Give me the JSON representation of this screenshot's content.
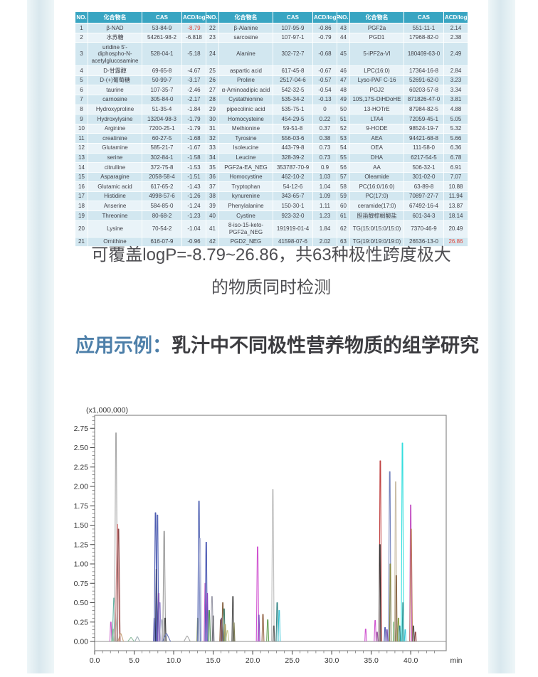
{
  "page": {
    "coverage_line1": "可覆盖logP=-8.79~26.86，共63种极性跨度极大",
    "coverage_line2": "的物质同时检测",
    "heading_label": "应用示例：",
    "heading_text": "乳汁中不同极性营养物质的组学研究"
  },
  "colors": {
    "table_header_bg": "#38a5c2",
    "row_odd": "#d2e7f0",
    "row_even": "#e9f3f8",
    "highlight_red": "#e0483e",
    "heading_blue": "#4d7fa9"
  },
  "table": {
    "header": [
      "NO.",
      "化合物名",
      "CAS",
      "ACD/logP"
    ],
    "groups": [
      [
        {
          "no": "1",
          "name": "β-NAD",
          "cas": "53-84-9",
          "lp": "-8.79",
          "r": 1
        },
        {
          "no": "2",
          "name": "水苏糖",
          "cas": "54261-98-2",
          "lp": "-6.818"
        },
        {
          "no": "3",
          "name": "uridine 5'-diphospho-N-acetylglucosamine",
          "cas": "528-04-1",
          "lp": "-5.18"
        },
        {
          "no": "4",
          "name": "D-甘露醇",
          "cas": "69-65-8",
          "lp": "-4.67"
        },
        {
          "no": "5",
          "name": "D-(+)葡萄糖",
          "cas": "50-99-7",
          "lp": "-3.17"
        },
        {
          "no": "6",
          "name": "taurine",
          "cas": "107-35-7",
          "lp": "-2.46"
        },
        {
          "no": "7",
          "name": "carnosine",
          "cas": "305-84-0",
          "lp": "-2.17"
        },
        {
          "no": "8",
          "name": "Hydroxyproline",
          "cas": "51-35-4",
          "lp": "-1.84"
        },
        {
          "no": "9",
          "name": "Hydroxylysine",
          "cas": "13204-98-3",
          "lp": "-1.79"
        },
        {
          "no": "10",
          "name": "Arginine",
          "cas": "7200-25-1",
          "lp": "-1.79"
        },
        {
          "no": "11",
          "name": "creatinine",
          "cas": "60-27-5",
          "lp": "-1.68"
        },
        {
          "no": "12",
          "name": "Glutamine",
          "cas": "585-21-7",
          "lp": "-1.67"
        },
        {
          "no": "13",
          "name": "serine",
          "cas": "302-84-1",
          "lp": "-1.58"
        },
        {
          "no": "14",
          "name": "citrulline",
          "cas": "372-75-8",
          "lp": "-1.53"
        },
        {
          "no": "15",
          "name": "Asparagine",
          "cas": "2058-58-4",
          "lp": "-1.51"
        },
        {
          "no": "16",
          "name": "Glutamic acid",
          "cas": "617-65-2",
          "lp": "-1.43"
        },
        {
          "no": "17",
          "name": "Histidine",
          "cas": "4998-57-6",
          "lp": "-1.26"
        },
        {
          "no": "18",
          "name": "Anserine",
          "cas": "584-85-0",
          "lp": "-1.24"
        },
        {
          "no": "19",
          "name": "Threonine",
          "cas": "80-68-2",
          "lp": "-1.23"
        },
        {
          "no": "20",
          "name": "Lysine",
          "cas": "70-54-2",
          "lp": "-1.04"
        },
        {
          "no": "21",
          "name": "Ornithine",
          "cas": "616-07-9",
          "lp": "-0.96"
        }
      ],
      [
        {
          "no": "22",
          "name": "β-Alanine",
          "cas": "107-95-9",
          "lp": "-0.86"
        },
        {
          "no": "23",
          "name": "sarcosine",
          "cas": "107-97-1",
          "lp": "-0.79"
        },
        {
          "no": "24",
          "name": "Alanine",
          "cas": "302-72-7",
          "lp": "-0.68"
        },
        {
          "no": "25",
          "name": "aspartic acid",
          "cas": "617-45-8",
          "lp": "-0.67"
        },
        {
          "no": "26",
          "name": "Proline",
          "cas": "2517-04-6",
          "lp": "-0.57"
        },
        {
          "no": "27",
          "name": "α-Aminoadipic acid",
          "cas": "542-32-5",
          "lp": "-0.54"
        },
        {
          "no": "28",
          "name": "Cystathionine",
          "cas": "535-34-2",
          "lp": "-0.13"
        },
        {
          "no": "29",
          "name": "pipecolinic acid",
          "cas": "535-75-1",
          "lp": "0"
        },
        {
          "no": "30",
          "name": "Homocysteine",
          "cas": "454-29-5",
          "lp": "0.22"
        },
        {
          "no": "31",
          "name": "Methionine",
          "cas": "59-51-8",
          "lp": "0.37"
        },
        {
          "no": "32",
          "name": "Tyrosine",
          "cas": "556-03-6",
          "lp": "0.38"
        },
        {
          "no": "33",
          "name": "Isoleucine",
          "cas": "443-79-8",
          "lp": "0.73"
        },
        {
          "no": "34",
          "name": "Leucine",
          "cas": "328-39-2",
          "lp": "0.73"
        },
        {
          "no": "35",
          "name": "PGF2a-EA_NEG",
          "cas": "353787-70-9",
          "lp": "0.9"
        },
        {
          "no": "36",
          "name": "Homocystine",
          "cas": "462-10-2",
          "lp": "1.03"
        },
        {
          "no": "37",
          "name": "Tryptophan",
          "cas": "54-12-6",
          "lp": "1.04"
        },
        {
          "no": "38",
          "name": "kynurenine",
          "cas": "343-65-7",
          "lp": "1.09"
        },
        {
          "no": "39",
          "name": "Phenylalanine",
          "cas": "150-30-1",
          "lp": "1.11"
        },
        {
          "no": "40",
          "name": "Cystine",
          "cas": "923-32-0",
          "lp": "1.23"
        },
        {
          "no": "41",
          "name": "8-iso-15-keto-PGF2a_NEG",
          "cas": "191919-01-4",
          "lp": "1.84"
        },
        {
          "no": "42",
          "name": "PGD2_NEG",
          "cas": "41598-07-6",
          "lp": "2.02"
        }
      ],
      [
        {
          "no": "43",
          "name": "PGF2a",
          "cas": "551-11-1",
          "lp": "2.14"
        },
        {
          "no": "44",
          "name": "PGD1",
          "cas": "17968-82-0",
          "lp": "2.38"
        },
        {
          "no": "45",
          "name": "5-iPF2a-VI",
          "cas": "180469-63-0",
          "lp": "2.49"
        },
        {
          "no": "46",
          "name": "LPC(16:0)",
          "cas": "17364-16-8",
          "lp": "2.84"
        },
        {
          "no": "47",
          "name": "Lyso-PAF C-16",
          "cas": "52691-62-0",
          "lp": "3.23"
        },
        {
          "no": "48",
          "name": "PGJ2",
          "cas": "60203-57-8",
          "lp": "3.34"
        },
        {
          "no": "49",
          "name": "10S,17S-DiHDoHE",
          "cas": "871826-47-0",
          "lp": "3.81"
        },
        {
          "no": "50",
          "name": "13-HOTrE",
          "cas": "87984-82-5",
          "lp": "4.88"
        },
        {
          "no": "51",
          "name": "LTA4",
          "cas": "72059-45-1",
          "lp": "5.05"
        },
        {
          "no": "52",
          "name": "9-HODE",
          "cas": "98524-19-7",
          "lp": "5.32"
        },
        {
          "no": "53",
          "name": "AEA",
          "cas": "94421-68-8",
          "lp": "5.66"
        },
        {
          "no": "54",
          "name": "OEA",
          "cas": "111-58-0",
          "lp": "6.36"
        },
        {
          "no": "55",
          "name": "DHA",
          "cas": "6217-54-5",
          "lp": "6.78"
        },
        {
          "no": "56",
          "name": "AA",
          "cas": "506-32-1",
          "lp": "6.91"
        },
        {
          "no": "57",
          "name": "Oleamide",
          "cas": "301-02-0",
          "lp": "7.07"
        },
        {
          "no": "58",
          "name": "PC(16:0/16:0)",
          "cas": "63-89-8",
          "lp": "10.88"
        },
        {
          "no": "59",
          "name": "PC(17:0)",
          "cas": "70897-27-7",
          "lp": "11.94"
        },
        {
          "no": "60",
          "name": "ceramide(17:0)",
          "cas": "67492-16-4",
          "lp": "13.87"
        },
        {
          "no": "61",
          "name": "胆甾醇棕榈酸盐",
          "cas": "601-34-3",
          "lp": "18.14"
        },
        {
          "no": "62",
          "name": "TG(15:0/15:0/15:0)",
          "cas": "7370-46-9",
          "lp": "20.49"
        },
        {
          "no": "63",
          "name": "TG(19:0/19:0/19:0)",
          "cas": "26536-13-0",
          "lp": "26.86",
          "r": 1
        }
      ]
    ]
  },
  "chart_data": {
    "type": "line",
    "title": "(x1,000,000)",
    "xlabel": "min",
    "x_tick_values": [
      0,
      5,
      10,
      15,
      20,
      25,
      30,
      35,
      40
    ],
    "x_tick_labels": [
      "0.0",
      "5.0",
      "10.0",
      "15.0",
      "20.0",
      "25.0",
      "30.0",
      "35.0",
      "40.0"
    ],
    "x_minor_step": 1,
    "x_max": 43.5,
    "y_tick_values": [
      0,
      0.25,
      0.5,
      0.75,
      1,
      1.25,
      1.5,
      1.75,
      2,
      2.25,
      2.5,
      2.75
    ],
    "y_tick_labels": [
      "0.00",
      "0.25",
      "0.50",
      "0.75",
      "1.00",
      "1.25",
      "1.50",
      "1.75",
      "2.00",
      "2.25",
      "2.50",
      "2.75"
    ],
    "y_minor_step": 0.05,
    "ylim": [
      -0.12,
      2.92
    ],
    "grid": "zero-line-only",
    "legend": "none",
    "peaks_format": [
      "retention_min",
      "height_millions",
      "color",
      "halfwidth_min"
    ],
    "peaks": [
      [
        2.05,
        0.25,
        "#c75bc7",
        0.12
      ],
      [
        2.3,
        0.16,
        "#7ab87a",
        0.14
      ],
      [
        2.45,
        0.56,
        "#5fb3a1",
        0.22
      ],
      [
        2.62,
        0.35,
        "#b8cfc4",
        0.3
      ],
      [
        2.7,
        2.69,
        "#a8a8a8",
        0.2
      ],
      [
        2.88,
        1.51,
        "#d89090",
        0.26
      ],
      [
        3.02,
        1.45,
        "#8f4848",
        0.2
      ],
      [
        3.3,
        0.1,
        "#caa27a",
        0.35
      ],
      [
        4.6,
        0.05,
        "#8fbf9f",
        0.4
      ],
      [
        5.4,
        0.06,
        "#9fb0b8",
        0.3
      ],
      [
        7.55,
        0.3,
        "#7a7ab8",
        0.12
      ],
      [
        7.7,
        1.66,
        "#4d5cb0",
        0.16
      ],
      [
        7.82,
        0.93,
        "#2e3560",
        0.13
      ],
      [
        7.95,
        1.63,
        "#5868b8",
        0.16
      ],
      [
        8.1,
        0.62,
        "#7e57b8",
        0.14
      ],
      [
        8.25,
        0.5,
        "#9a8ad0",
        0.16
      ],
      [
        8.5,
        0.28,
        "#b0b8c8",
        0.2
      ],
      [
        8.8,
        1.42,
        "#989898",
        0.18
      ],
      [
        8.92,
        0.3,
        "#3f3f3f",
        0.12
      ],
      [
        9.1,
        0.1,
        "#6878b8",
        0.5
      ],
      [
        11.7,
        0.07,
        "#a8a8a8",
        0.4
      ],
      [
        13.05,
        0.3,
        "#8a9a6a",
        0.12
      ],
      [
        13.2,
        1.81,
        "#5163b3",
        0.16
      ],
      [
        13.35,
        1.33,
        "#b3b9da",
        0.18
      ],
      [
        14.0,
        0.75,
        "#c75bc7",
        0.15
      ],
      [
        14.12,
        1.28,
        "#4a58b3",
        0.14
      ],
      [
        14.25,
        0.62,
        "#8348c0",
        0.13
      ],
      [
        14.5,
        0.4,
        "#4f9f4f",
        0.13
      ],
      [
        14.85,
        0.58,
        "#9a9aa8",
        0.16
      ],
      [
        15.0,
        0.33,
        "#6f6f78",
        0.11
      ],
      [
        15.95,
        0.28,
        "#8a5a3a",
        0.12
      ],
      [
        16.08,
        0.3,
        "#6a4a8a",
        0.12
      ],
      [
        16.22,
        0.5,
        "#8a6848",
        0.13
      ],
      [
        16.38,
        0.42,
        "#47806c",
        0.12
      ],
      [
        16.52,
        0.22,
        "#a8a060",
        0.12
      ],
      [
        16.8,
        0.14,
        "#c8c890",
        0.2
      ],
      [
        17.5,
        0.58,
        "#4f4f4f",
        0.13
      ],
      [
        17.62,
        0.24,
        "#7a7a50",
        0.12
      ],
      [
        20.62,
        1.22,
        "#d053d0",
        0.16
      ],
      [
        20.78,
        0.34,
        "#8653c0",
        0.12
      ],
      [
        21.3,
        0.35,
        "#96684a",
        0.13
      ],
      [
        21.9,
        0.28,
        "#63a053",
        0.13
      ],
      [
        22.55,
        1.96,
        "#bdbdbd",
        0.16
      ],
      [
        22.68,
        0.2,
        "#5f5f5f",
        0.1
      ],
      [
        23.1,
        0.5,
        "#368787",
        0.13
      ],
      [
        23.35,
        0.4,
        "#3fc7d8",
        0.13
      ],
      [
        34.3,
        0.16,
        "#d053d0",
        0.1
      ],
      [
        35.5,
        0.27,
        "#d053d0",
        0.12
      ],
      [
        35.75,
        0.12,
        "#9a55a0",
        0.1
      ],
      [
        36.15,
        2.33,
        "#c04343",
        0.15
      ],
      [
        36.1,
        1.25,
        "#333333",
        0.1
      ],
      [
        36.75,
        0.18,
        "#5560b3",
        0.1
      ],
      [
        37.0,
        0.15,
        "#7a55b3",
        0.1
      ],
      [
        37.35,
        2.19,
        "#7282bd",
        0.15
      ],
      [
        37.42,
        1.0,
        "#8a8a45",
        0.1
      ],
      [
        37.9,
        0.25,
        "#4f9f4f",
        0.12
      ],
      [
        38.1,
        2.06,
        "#c9bda6",
        0.15
      ],
      [
        38.18,
        0.85,
        "#8a6848",
        0.1
      ],
      [
        38.45,
        0.3,
        "#8aa043",
        0.12
      ],
      [
        38.6,
        0.2,
        "#368787",
        0.1
      ],
      [
        38.95,
        2.56,
        "#35dede",
        0.15
      ],
      [
        39.02,
        0.5,
        "#2a9a9a",
        0.1
      ],
      [
        39.3,
        0.15,
        "#3fc7d8",
        0.1
      ],
      [
        40.0,
        1.76,
        "#c557c5",
        0.13
      ],
      [
        40.05,
        1.45,
        "#bd7a5a",
        0.17
      ],
      [
        40.35,
        0.2,
        "#555555",
        0.1
      ],
      [
        40.6,
        0.12,
        "#8f4848",
        0.1
      ]
    ]
  }
}
